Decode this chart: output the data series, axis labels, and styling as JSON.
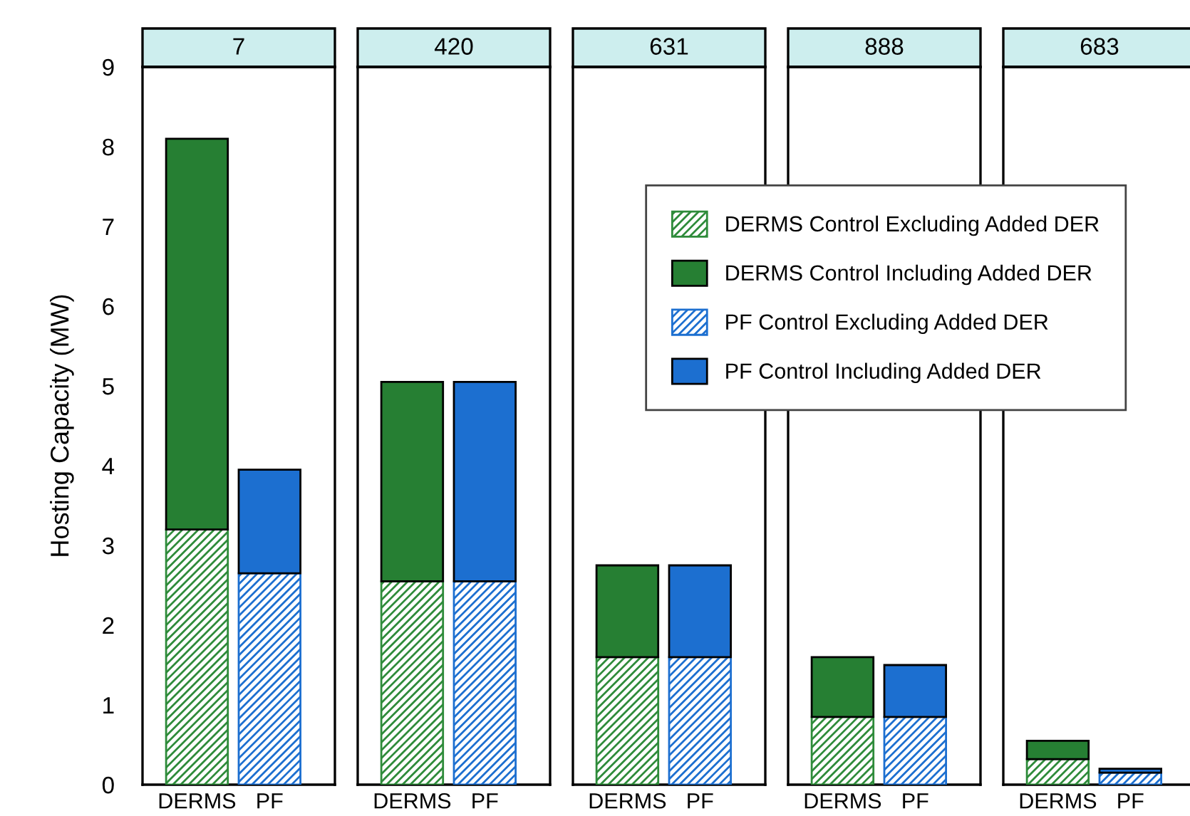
{
  "chart_data": [
    {
      "type": "bar",
      "title": "7",
      "ylabel": "Hosting Capacity (MW)",
      "categories": [
        "DERMS",
        "PF"
      ],
      "stacked": true,
      "ylim": [
        0,
        9
      ],
      "yticks": [
        0,
        1,
        2,
        3,
        4,
        5,
        6,
        7,
        8,
        9
      ],
      "grid": false,
      "legend": false,
      "series": [
        {
          "color": "#2e8b3a",
          "values": [
            3.2,
            null
          ]
        },
        {
          "color": "#267f33",
          "values": [
            4.9,
            null
          ]
        },
        {
          "color": "#1c6fd0",
          "values": [
            null,
            2.65
          ]
        },
        {
          "color": "#1c6fd0",
          "values": [
            null,
            1.3
          ]
        }
      ]
    },
    {
      "type": "bar",
      "title": "420",
      "categories": [
        "DERMS",
        "PF"
      ],
      "stacked": true,
      "ylim": [
        0,
        9
      ],
      "yticks": [
        0,
        1,
        2,
        3,
        4,
        5,
        6,
        7,
        8,
        9
      ],
      "tick_labels": "x",
      "grid": false,
      "legend": false,
      "series": [
        {
          "color": "#2e8b3a",
          "values": [
            2.55,
            null
          ]
        },
        {
          "color": "#267f33",
          "values": [
            2.5,
            null
          ]
        },
        {
          "color": "#1c6fd0",
          "values": [
            null,
            2.55
          ]
        },
        {
          "color": "#1c6fd0",
          "values": [
            null,
            2.5
          ]
        }
      ]
    },
    {
      "type": "bar",
      "title": "631",
      "categories": [
        "DERMS",
        "PF"
      ],
      "stacked": true,
      "ylim": [
        0,
        9
      ],
      "yticks": [
        0,
        1,
        2,
        3,
        4,
        5,
        6,
        7,
        8,
        9
      ],
      "tick_labels": "x",
      "grid": false,
      "legend": "top right",
      "series": [
        {
          "name": "DERMS Control Excluding Added DER",
          "color": "#2e8b3a",
          "values": [
            1.6,
            null
          ]
        },
        {
          "name": "DERMS Control Including Added DER",
          "color": "#267f33",
          "values": [
            1.15,
            null
          ]
        },
        {
          "name": "PF Control Excluding Added DER",
          "color": "#1c6fd0",
          "values": [
            null,
            1.6
          ]
        },
        {
          "name": "PF Control Including Added DER",
          "color": "#1c6fd0",
          "values": [
            null,
            1.15
          ]
        }
      ]
    },
    {
      "type": "bar",
      "title": "888",
      "categories": [
        "DERMS",
        "PF"
      ],
      "stacked": true,
      "ylim": [
        0,
        9
      ],
      "yticks": [
        0,
        1,
        2,
        3,
        4,
        5,
        6,
        7,
        8,
        9
      ],
      "tick_labels": "x",
      "grid": false,
      "legend": false,
      "series": [
        {
          "color": "#2e8b3a",
          "values": [
            0.85,
            null
          ]
        },
        {
          "color": "#267f33",
          "values": [
            0.75,
            null
          ]
        },
        {
          "color": "#1c6fd0",
          "values": [
            null,
            0.85
          ]
        },
        {
          "color": "#1c6fd0",
          "values": [
            null,
            0.65
          ]
        }
      ]
    },
    {
      "type": "bar",
      "title": "683",
      "categories": [
        "DERMS",
        "PF"
      ],
      "stacked": true,
      "ylim": [
        0,
        9
      ],
      "yticks": [
        0,
        1,
        2,
        3,
        4,
        5,
        6,
        7,
        8,
        9
      ],
      "tick_labels": "x",
      "grid": false,
      "legend": false,
      "series": [
        {
          "color": "#2e8b3a",
          "values": [
            0.32,
            null
          ]
        },
        {
          "color": "#267f33",
          "values": [
            0.23,
            null
          ]
        },
        {
          "color": "#1c6fd0",
          "values": [
            null,
            0.15
          ]
        },
        {
          "color": "#1c6fd0",
          "values": [
            null,
            0.05
          ]
        }
      ]
    }
  ]
}
